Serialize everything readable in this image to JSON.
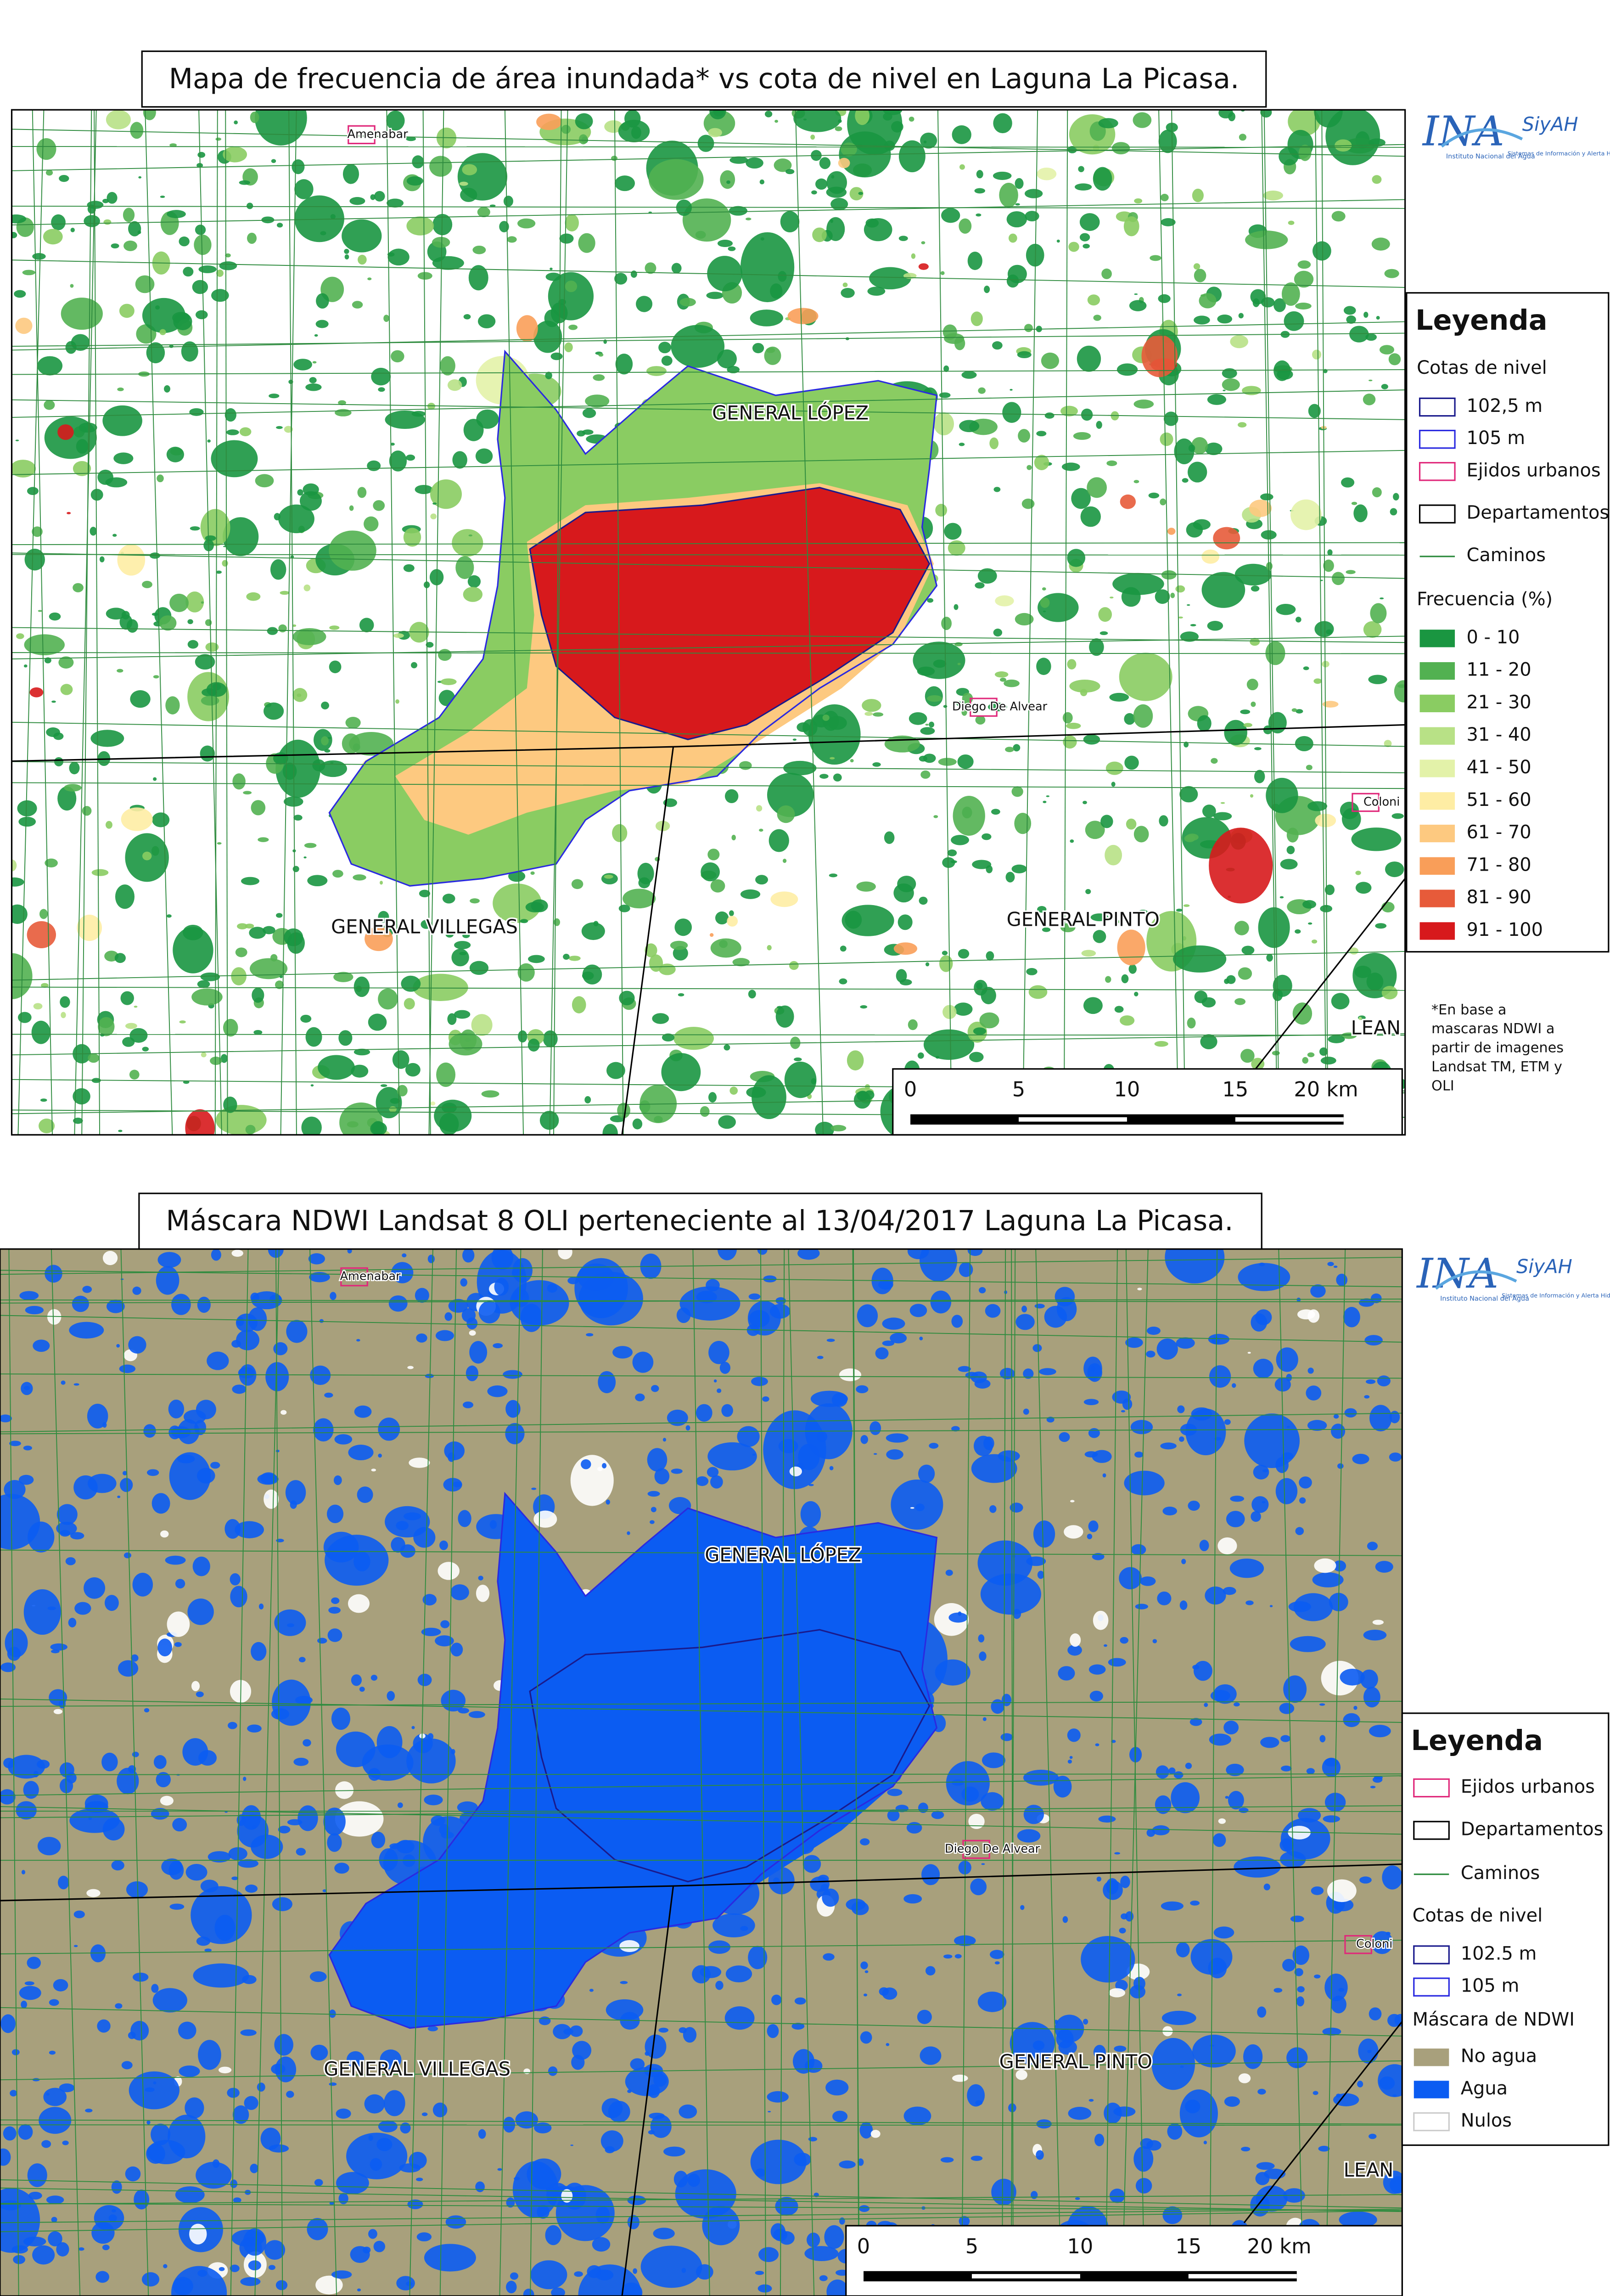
{
  "logo": {
    "name": "INA",
    "system": "SiyAH",
    "institute": "Instituto Nacional del Agua",
    "subtitle": "Sistemas de Información y Alerta Hidrológico"
  },
  "map1": {
    "title": "Mapa de frecuencia de área inundada* vs cota de nivel en Laguna La Picasa.",
    "places": [
      "Amenabar",
      "GENERAL LÓPEZ",
      "Diego De Alvear",
      "Coloni",
      "GENERAL VILLEGAS",
      "GENERAL PINTO",
      "LEAN"
    ],
    "legend": {
      "title": "Leyenda",
      "contour_heading": "Cotas de nivel",
      "contours": [
        {
          "label": "102,5 m",
          "color": "#1a1a8c"
        },
        {
          "label": "105 m",
          "color": "#2a2ae0"
        }
      ],
      "ejidos": "Ejidos urbanos",
      "departamentos": "Departamentos",
      "caminos": "Caminos",
      "frequency_heading": "Frecuencia (%)",
      "classes": [
        {
          "label": "0 - 10",
          "color": "#1a9641"
        },
        {
          "label": "11 - 20",
          "color": "#52b151"
        },
        {
          "label": "21 - 30",
          "color": "#8acc62"
        },
        {
          "label": "31 - 40",
          "color": "#b8e186"
        },
        {
          "label": "41 - 50",
          "color": "#e3f2a9"
        },
        {
          "label": "51 - 60",
          "color": "#feeda4"
        },
        {
          "label": "61 - 70",
          "color": "#fdc980"
        },
        {
          "label": "71 - 80",
          "color": "#f99e59"
        },
        {
          "label": "81 - 90",
          "color": "#e75b3a"
        },
        {
          "label": "91 - 100",
          "color": "#d7191c"
        }
      ]
    },
    "note": [
      "*En base a",
      "mascaras NDWI a",
      "partir de imagenes",
      "Landsat TM, ETM y",
      "OLI"
    ],
    "scale": [
      "0",
      "5",
      "10",
      "15",
      "20 km"
    ]
  },
  "map2": {
    "title": "Máscara NDWI Landsat 8 OLI perteneciente al 13/04/2017 Laguna La Picasa.",
    "places": [
      "Amenabar",
      "GENERAL LÓPEZ",
      "Diego De Alvear",
      "Coloni",
      "GENERAL VILLEGAS",
      "GENERAL PINTO",
      "LEAN"
    ],
    "legend": {
      "title": "Leyenda",
      "ejidos": "Ejidos urbanos",
      "departamentos": "Departamentos",
      "caminos": "Caminos",
      "contour_heading": "Cotas de nivel",
      "contours": [
        {
          "label": "102.5 m",
          "color": "#1a1a8c"
        },
        {
          "label": "105 m",
          "color": "#2a2ae0"
        }
      ],
      "mask_heading": "Máscara de NDWI",
      "classes": [
        {
          "label": "No agua",
          "color": "#a8a07c"
        },
        {
          "label": "Agua",
          "color": "#0b5cf2"
        },
        {
          "label": "Nulos",
          "color": "#ffffff"
        }
      ]
    },
    "scale": [
      "0",
      "5",
      "10",
      "15",
      "20 km"
    ]
  }
}
